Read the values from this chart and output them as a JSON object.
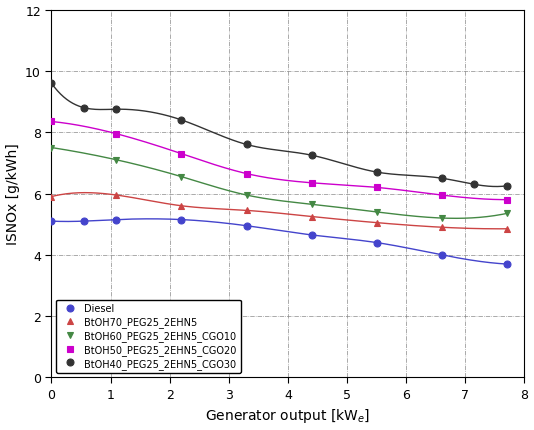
{
  "series": [
    {
      "label": "Diesel",
      "color": "#4444cc",
      "marker": "o",
      "markersize": 5,
      "markerfacecolor": "#4444cc",
      "x": [
        0.0,
        0.55,
        1.1,
        2.2,
        3.3,
        4.4,
        5.5,
        6.6,
        7.7
      ],
      "y": [
        5.1,
        5.1,
        5.15,
        5.15,
        4.95,
        4.65,
        4.4,
        4.0,
        3.7
      ]
    },
    {
      "label": "BtOH70_PEG25_2EHN5",
      "color": "#cc4444",
      "marker": "^",
      "markersize": 5,
      "markerfacecolor": "#cc4444",
      "x": [
        0.0,
        1.1,
        2.2,
        3.3,
        4.4,
        5.5,
        6.6,
        7.7
      ],
      "y": [
        5.9,
        5.95,
        5.6,
        5.45,
        5.25,
        5.05,
        4.9,
        4.85
      ]
    },
    {
      "label": "BtOH60_PEG25_2EHN5_CGO10",
      "color": "#448844",
      "marker": "v",
      "markersize": 5,
      "markerfacecolor": "#448844",
      "x": [
        0.0,
        1.1,
        2.2,
        3.3,
        4.4,
        5.5,
        6.6,
        7.7
      ],
      "y": [
        7.5,
        7.1,
        6.55,
        5.95,
        5.65,
        5.4,
        5.2,
        5.35
      ]
    },
    {
      "label": "BtOH50_PEG25_2EHN5_CGO20",
      "color": "#cc00cc",
      "marker": "s",
      "markersize": 5,
      "markerfacecolor": "#cc00cc",
      "x": [
        0.0,
        1.1,
        2.2,
        3.3,
        4.4,
        5.5,
        6.6,
        7.7
      ],
      "y": [
        8.35,
        7.95,
        7.3,
        6.65,
        6.35,
        6.2,
        5.95,
        5.8
      ]
    },
    {
      "label": "BtOH40_PEG25_2EHN5_CGO30",
      "color": "#333333",
      "marker": "o",
      "markersize": 5,
      "markerfacecolor": "#333333",
      "x": [
        0.0,
        0.55,
        1.1,
        2.2,
        3.3,
        4.4,
        5.5,
        6.6,
        7.15,
        7.7
      ],
      "y": [
        9.6,
        8.8,
        8.75,
        8.4,
        7.6,
        7.25,
        6.7,
        6.5,
        6.3,
        6.25
      ]
    }
  ],
  "xlabel": "Generator output [kW$_e$]",
  "ylabel": "ISNOx [g/kWh]",
  "xlim": [
    0,
    8
  ],
  "ylim": [
    0,
    12
  ],
  "xticks": [
    0,
    1,
    2,
    3,
    4,
    5,
    6,
    7,
    8
  ],
  "yticks": [
    0,
    2,
    4,
    6,
    8,
    10,
    12
  ],
  "legend_loc": "lower left",
  "figsize": [
    5.34,
    4.31
  ],
  "dpi": 100,
  "bg_color": "#ffffff",
  "grid_color": "#888888",
  "grid_linestyle": "-.",
  "grid_linewidth": 0.5,
  "line_linewidth": 1.0,
  "tick_labelsize": 9,
  "axis_labelsize": 10,
  "legend_fontsize": 7
}
